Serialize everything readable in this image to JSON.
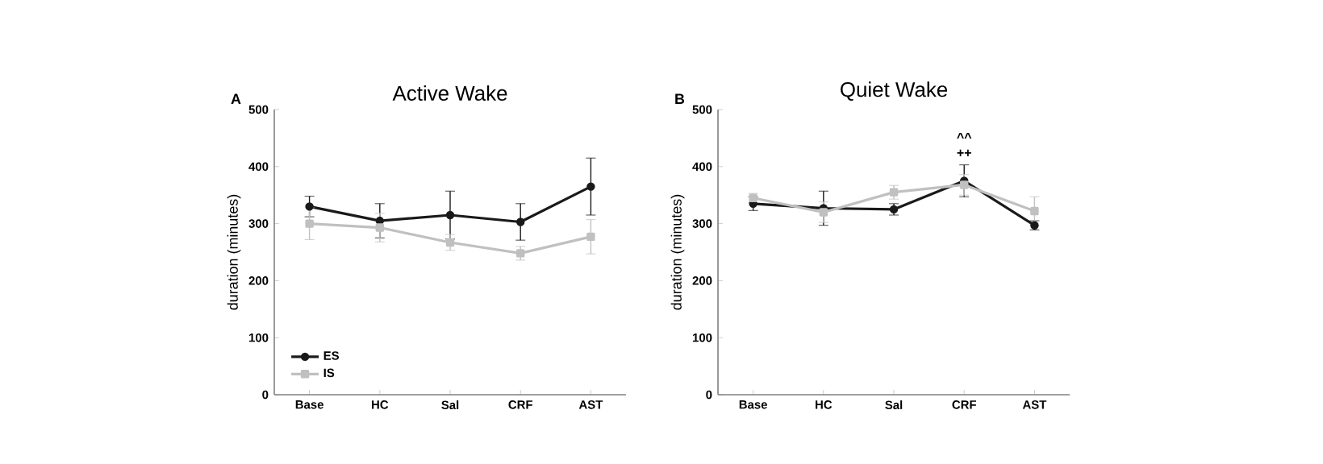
{
  "chart_data": [
    {
      "type": "line",
      "title": "Active Wake",
      "ylabel": "duration (minutes)",
      "categories": [
        "Base",
        "HC",
        "Sal",
        "CRF",
        "AST"
      ],
      "series": [
        {
          "name": "ES",
          "color": "#1a1a1a",
          "marker": "circle",
          "values": [
            330,
            305,
            315,
            303,
            365
          ],
          "errors": [
            18,
            30,
            42,
            32,
            50
          ]
        },
        {
          "name": "IS",
          "color": "#c0c0c0",
          "marker": "square",
          "values": [
            300,
            293,
            267,
            248,
            277
          ],
          "errors": [
            28,
            25,
            14,
            12,
            30
          ]
        }
      ],
      "ylim": [
        0,
        500
      ],
      "yticks": [
        0,
        100,
        200,
        300,
        400,
        500
      ],
      "legend": "bottom left",
      "annotations": [
        "A"
      ]
    },
    {
      "type": "line",
      "title": "Quiet Wake",
      "ylabel": "duration (minutes)",
      "categories": [
        "Base",
        "HC",
        "Sal",
        "CRF",
        "AST"
      ],
      "series": [
        {
          "color": "#1a1a1a",
          "marker": "circle",
          "values": [
            335,
            327,
            325,
            375,
            297
          ],
          "errors": [
            12,
            30,
            10,
            28,
            8
          ]
        },
        {
          "color": "#c0c0c0",
          "marker": "square",
          "values": [
            345,
            320,
            355,
            368,
            322
          ],
          "errors": [
            8,
            18,
            12,
            18,
            25
          ]
        }
      ],
      "ylim": [
        0,
        500
      ],
      "yticks": [
        0,
        100,
        200,
        300,
        400,
        500
      ],
      "annotations": [
        "B",
        "^^",
        {
          "text": "++",
          "x": "CRF",
          "y": 375
        }
      ]
    }
  ]
}
